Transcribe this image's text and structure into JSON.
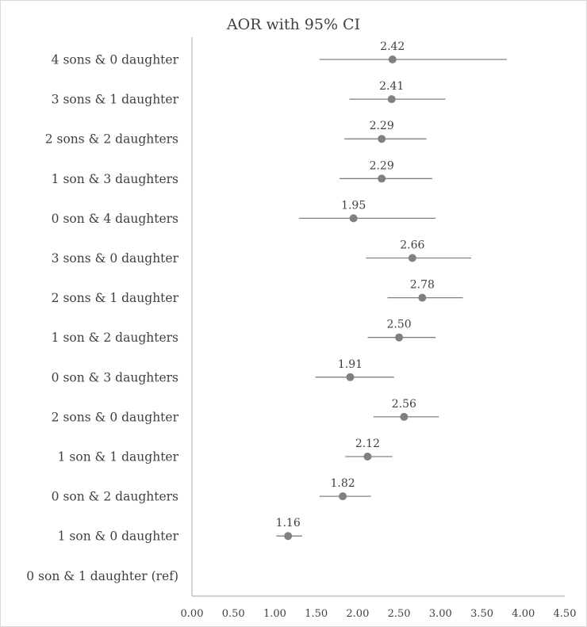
{
  "chart_data": {
    "type": "forest",
    "title": "AOR with 95% CI",
    "xlabel": "",
    "ylabel": "",
    "xlim": [
      0,
      4.5
    ],
    "x_ticks": [
      "0.00",
      "0.50",
      "1.00",
      "1.50",
      "2.00",
      "2.50",
      "3.00",
      "3.50",
      "4.00",
      "4.50"
    ],
    "grid": false,
    "legend": "none",
    "categories": [
      "4 sons & 0 daughter",
      "3 sons & 1 daughter",
      "2 sons & 2 daughters",
      "1 son & 3 daughters",
      "0 son & 4 daughters",
      "3 sons & 0 daughter",
      "2 sons & 1 daughter",
      "1 son & 2 daughters",
      "0 son & 3 daughters",
      "2 sons & 0 daughter",
      "1 son & 1 daughter",
      "0 son & 2 daughters",
      "1 son & 0 daughter",
      "0 son & 1 daughter (ref)"
    ],
    "points": [
      {
        "value": 2.42,
        "label": "2.42",
        "lower": 1.54,
        "upper": 3.8
      },
      {
        "value": 2.41,
        "label": "2.41",
        "lower": 1.9,
        "upper": 3.06
      },
      {
        "value": 2.29,
        "label": "2.29",
        "lower": 1.84,
        "upper": 2.83
      },
      {
        "value": 2.29,
        "label": "2.29",
        "lower": 1.78,
        "upper": 2.9
      },
      {
        "value": 1.95,
        "label": "1.95",
        "lower": 1.29,
        "upper": 2.94
      },
      {
        "value": 2.66,
        "label": "2.66",
        "lower": 2.1,
        "upper": 3.37
      },
      {
        "value": 2.78,
        "label": "2.78",
        "lower": 2.36,
        "upper": 3.27
      },
      {
        "value": 2.5,
        "label": "2.50",
        "lower": 2.12,
        "upper": 2.94
      },
      {
        "value": 1.91,
        "label": "1.91",
        "lower": 1.49,
        "upper": 2.44
      },
      {
        "value": 2.56,
        "label": "2.56",
        "lower": 2.19,
        "upper": 2.98
      },
      {
        "value": 2.12,
        "label": "2.12",
        "lower": 1.85,
        "upper": 2.42
      },
      {
        "value": 1.82,
        "label": "1.82",
        "lower": 1.54,
        "upper": 2.16
      },
      {
        "value": 1.16,
        "label": "1.16",
        "lower": 1.02,
        "upper": 1.33
      },
      null
    ],
    "colors": {
      "marker": "#808080",
      "ci_line": "#808080",
      "axis": "#a6a6a6",
      "text": "#404040"
    }
  }
}
